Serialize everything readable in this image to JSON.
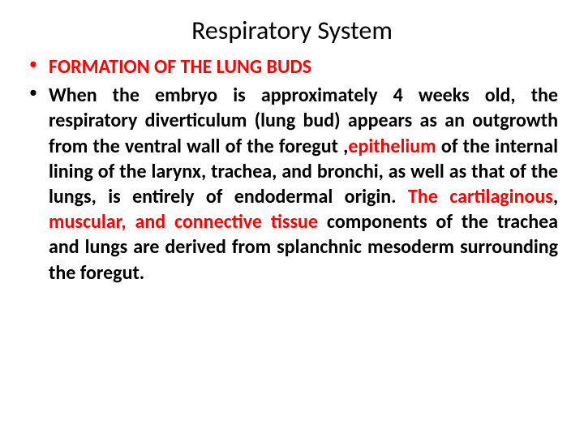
{
  "slide": {
    "title": "Respiratory System",
    "bullet1": "FORMATION OF THE LUNG BUDS",
    "body": {
      "t1": "When the embryo is approximately 4 weeks old, the respiratory diverticulum (lung bud) appears as an outgrowth from the ventral wall of the foregut ,",
      "h1": "epithelium",
      "t2": " of the internal lining of the larynx, trachea, and bronchi, as well as that of the lungs, is entirely of endodermal origin. ",
      "h2": "The cartilaginous",
      "t3": ", ",
      "h3": "muscular, and connective tissue",
      "t4": " components of the trachea and lungs are derived from splanchnic mesoderm surrounding the foregut."
    }
  },
  "colors": {
    "highlight": "#ff0000",
    "text": "#000000",
    "background": "#ffffff"
  },
  "typography": {
    "title_fontsize": 32,
    "body_fontsize": 24,
    "body_weight": 700,
    "font_family": "Calibri"
  }
}
